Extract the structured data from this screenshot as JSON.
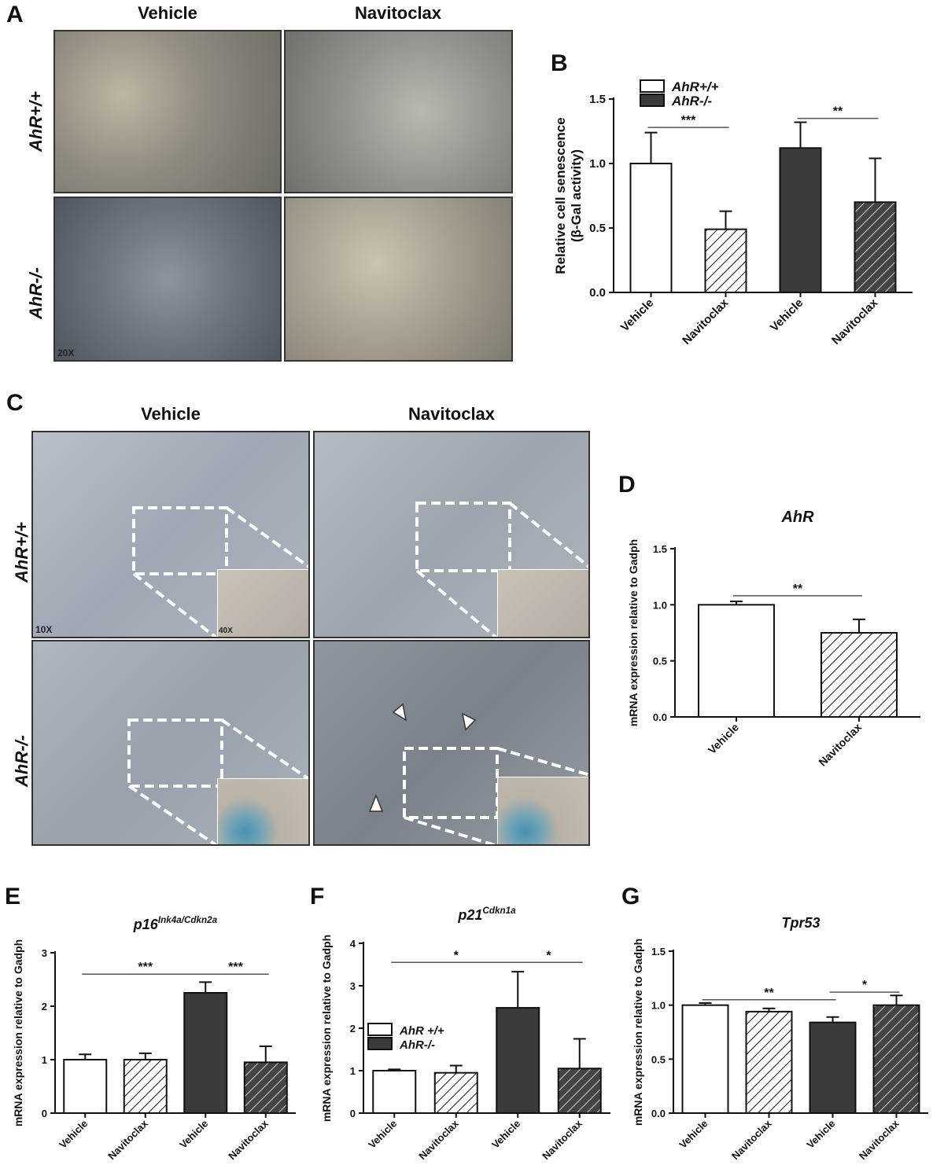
{
  "panels": {
    "A": {
      "label": "A",
      "col_titles": [
        "Vehicle",
        "Navitoclax"
      ],
      "row_labels": [
        "AhR+/+",
        "AhR-/-"
      ],
      "magnification": "20X"
    },
    "C": {
      "label": "C",
      "col_titles": [
        "Vehicle",
        "Navitoclax"
      ],
      "row_labels": [
        "AhR+/+",
        "AhR-/-"
      ],
      "magnification": "10X",
      "inset_magnification": "40X"
    }
  },
  "chart_data": [
    {
      "id": "B",
      "panel_label": "B",
      "type": "bar",
      "title": "",
      "ylabel": "Relative cell senescence",
      "ylabel2": "(β-Gal activity)",
      "ylim": [
        0,
        1.5
      ],
      "yticks": [
        "0.0",
        "0.5",
        "1.0",
        "1.5"
      ],
      "categories": [
        "Vehicle",
        "Navitoclax",
        "Vehicle",
        "Navitoclax"
      ],
      "values": [
        1.0,
        0.49,
        1.12,
        0.7
      ],
      "errors": [
        0.24,
        0.14,
        0.2,
        0.34
      ],
      "styles": [
        "white",
        "hatch-white",
        "dark",
        "hatch-dark"
      ],
      "legend": [
        {
          "label": "AhR+/+",
          "style": "white"
        },
        {
          "label": "AhR-/-",
          "style": "dark"
        }
      ],
      "legend_position": "top-left",
      "significance": [
        {
          "from": 0,
          "to": 1,
          "y": 1.28,
          "label": "***"
        },
        {
          "from": 2,
          "to": 3,
          "y": 1.35,
          "label": "**"
        }
      ]
    },
    {
      "id": "D",
      "panel_label": "D",
      "type": "bar",
      "title": "AhR",
      "ylabel": "mRNA expression relative to Gadph",
      "ylim": [
        0,
        1.5
      ],
      "yticks": [
        "0.0",
        "0.5",
        "1.0",
        "1.5"
      ],
      "categories": [
        "Vehicle",
        "Navitoclax"
      ],
      "values": [
        1.0,
        0.75
      ],
      "errors": [
        0.03,
        0.12
      ],
      "styles": [
        "white",
        "hatch-white"
      ],
      "significance": [
        {
          "from": 0,
          "to": 1,
          "y": 1.08,
          "label": "**"
        }
      ]
    },
    {
      "id": "E",
      "panel_label": "E",
      "type": "bar",
      "title": "p16",
      "title_sup": "Ink4a/Cdkn2a",
      "ylabel": "mRNA expression relative to Gadph",
      "ylim": [
        0,
        3
      ],
      "yticks": [
        "0",
        "1",
        "2",
        "3"
      ],
      "categories": [
        "Vehicle",
        "Navitoclax",
        "Vehicle",
        "Navitoclax"
      ],
      "values": [
        1.0,
        1.0,
        2.25,
        0.95
      ],
      "errors": [
        0.1,
        0.12,
        0.2,
        0.3
      ],
      "styles": [
        "white",
        "hatch-white",
        "dark",
        "hatch-dark"
      ],
      "significance": [
        {
          "from": 0,
          "to": 2,
          "y": 2.6,
          "label": "***"
        },
        {
          "from": 2,
          "to": 3,
          "y": 2.6,
          "label": "***"
        }
      ]
    },
    {
      "id": "F",
      "panel_label": "F",
      "type": "bar",
      "title": "p21",
      "title_sup": "Cdkn1a",
      "ylabel": "mRNA expression relative to Gadph",
      "ylim": [
        0,
        4
      ],
      "yticks": [
        "0",
        "1",
        "2",
        "3",
        "4"
      ],
      "categories": [
        "Vehicle",
        "Navitoclax",
        "Vehicle",
        "Navitoclax"
      ],
      "values": [
        1.0,
        0.95,
        2.48,
        1.05
      ],
      "errors": [
        0.03,
        0.17,
        0.85,
        0.7
      ],
      "styles": [
        "white",
        "hatch-white",
        "dark",
        "hatch-dark"
      ],
      "legend": [
        {
          "label": "AhR +/+",
          "style": "white"
        },
        {
          "label": "AhR-/-",
          "style": "dark"
        }
      ],
      "legend_position": "middle-left",
      "significance": [
        {
          "from": 0,
          "to": 2,
          "y": 3.55,
          "label": "*"
        },
        {
          "from": 2,
          "to": 3,
          "y": 3.55,
          "label": "*"
        }
      ]
    },
    {
      "id": "G",
      "panel_label": "G",
      "type": "bar",
      "title": "Tpr53",
      "ylabel": "mRNA expression relative to Gadph",
      "ylim": [
        0,
        1.5
      ],
      "yticks": [
        "0.0",
        "0.5",
        "1.0",
        "1.5"
      ],
      "categories": [
        "Vehicle",
        "Navitoclax",
        "Vehicle",
        "Navitoclax"
      ],
      "values": [
        1.0,
        0.94,
        0.84,
        1.0
      ],
      "errors": [
        0.02,
        0.03,
        0.05,
        0.09
      ],
      "styles": [
        "white",
        "hatch-white",
        "dark",
        "hatch-dark"
      ],
      "significance": [
        {
          "from": 0,
          "to": 2,
          "y": 1.05,
          "label": "**"
        },
        {
          "from": 2,
          "to": 3,
          "y": 1.12,
          "label": "*"
        }
      ]
    }
  ]
}
